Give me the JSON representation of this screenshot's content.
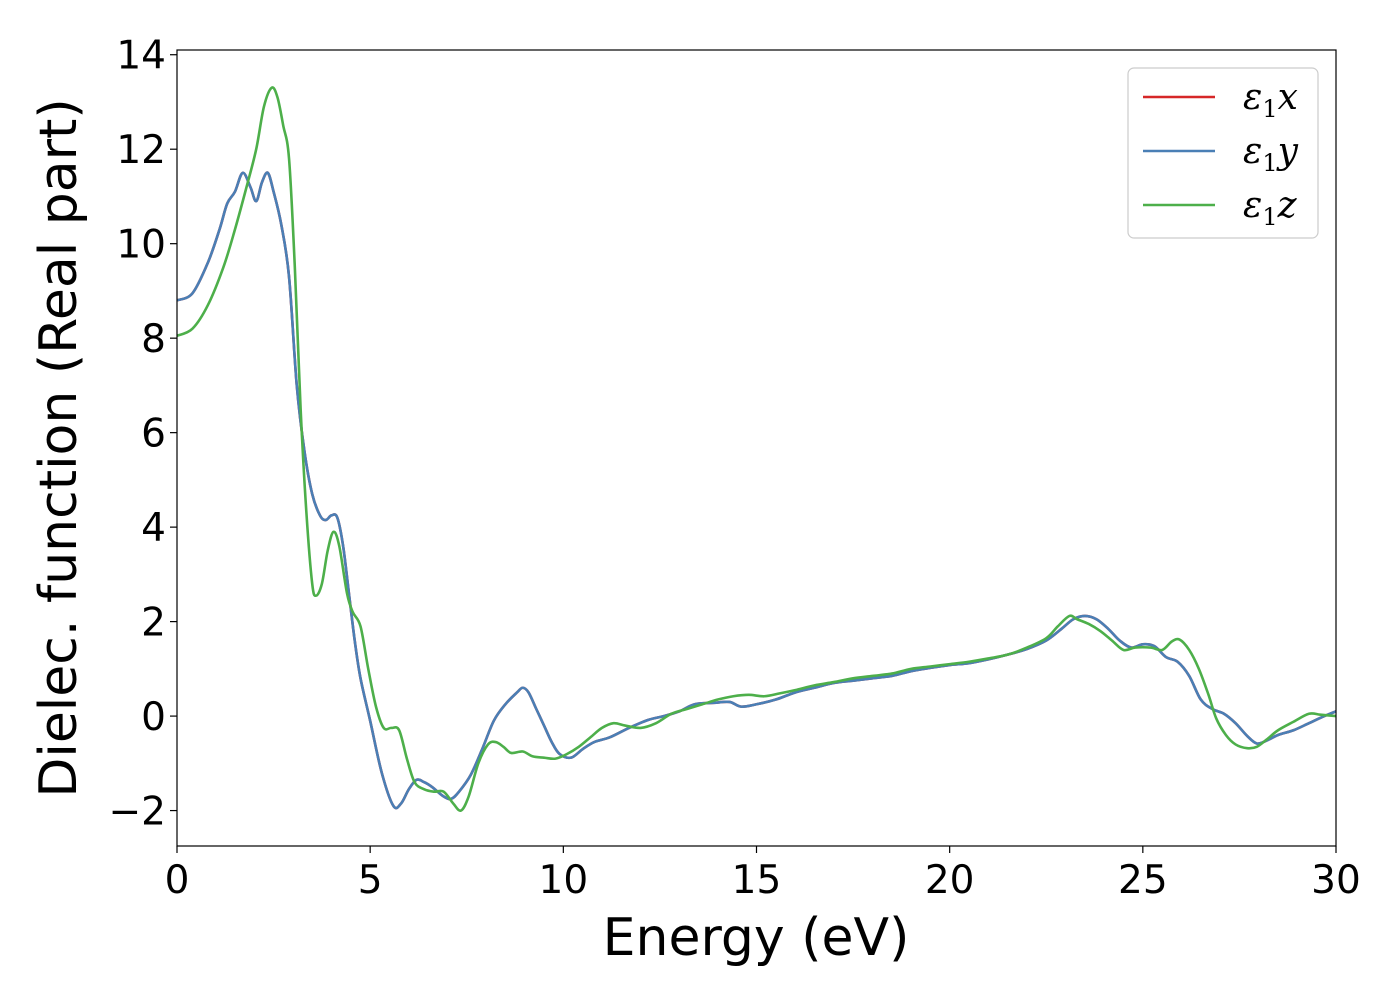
{
  "chart_data": {
    "type": "line",
    "xlabel": "Energy (eV)",
    "ylabel": "Dielec. function (Real part)",
    "xlim": [
      0,
      30
    ],
    "ylim": [
      -2.75,
      14.1
    ],
    "xticks": [
      0,
      5,
      10,
      15,
      20,
      25,
      30
    ],
    "xtick_labels": [
      "0",
      "5",
      "10",
      "15",
      "20",
      "25",
      "30"
    ],
    "yticks": [
      -2,
      0,
      2,
      4,
      6,
      8,
      10,
      12,
      14
    ],
    "ytick_labels": [
      "−2",
      "0",
      "2",
      "4",
      "6",
      "8",
      "10",
      "12",
      "14"
    ],
    "grid": false,
    "legend_position": "top-right",
    "series": [
      {
        "name": "ε1x",
        "legend_main": "ε",
        "legend_sub": "1",
        "legend_var": "x",
        "color": "#d62728",
        "points": [
          [
            0,
            8.8
          ],
          [
            0.4,
            8.95
          ],
          [
            0.8,
            9.6
          ],
          [
            1.1,
            10.3
          ],
          [
            1.3,
            10.85
          ],
          [
            1.5,
            11.1
          ],
          [
            1.7,
            11.5
          ],
          [
            1.9,
            11.2
          ],
          [
            2.05,
            10.9
          ],
          [
            2.2,
            11.3
          ],
          [
            2.35,
            11.5
          ],
          [
            2.5,
            11.1
          ],
          [
            2.7,
            10.4
          ],
          [
            2.9,
            9.3
          ],
          [
            3.1,
            7.0
          ],
          [
            3.3,
            5.6
          ],
          [
            3.5,
            4.7
          ],
          [
            3.7,
            4.25
          ],
          [
            3.85,
            4.15
          ],
          [
            4.0,
            4.25
          ],
          [
            4.15,
            4.2
          ],
          [
            4.3,
            3.6
          ],
          [
            4.45,
            2.6
          ],
          [
            4.6,
            1.6
          ],
          [
            4.75,
            0.8
          ],
          [
            5.0,
            -0.1
          ],
          [
            5.3,
            -1.2
          ],
          [
            5.6,
            -1.9
          ],
          [
            5.8,
            -1.85
          ],
          [
            6.0,
            -1.55
          ],
          [
            6.2,
            -1.35
          ],
          [
            6.4,
            -1.4
          ],
          [
            6.6,
            -1.5
          ],
          [
            6.9,
            -1.7
          ],
          [
            7.1,
            -1.75
          ],
          [
            7.3,
            -1.6
          ],
          [
            7.6,
            -1.25
          ],
          [
            7.9,
            -0.7
          ],
          [
            8.2,
            -0.1
          ],
          [
            8.5,
            0.25
          ],
          [
            8.8,
            0.5
          ],
          [
            8.95,
            0.6
          ],
          [
            9.1,
            0.5
          ],
          [
            9.3,
            0.15
          ],
          [
            9.5,
            -0.2
          ],
          [
            9.7,
            -0.55
          ],
          [
            9.9,
            -0.8
          ],
          [
            10.2,
            -0.88
          ],
          [
            10.5,
            -0.7
          ],
          [
            10.8,
            -0.55
          ],
          [
            11.2,
            -0.45
          ],
          [
            11.7,
            -0.25
          ],
          [
            12.2,
            -0.08
          ],
          [
            12.6,
            0.0
          ],
          [
            13.0,
            0.1
          ],
          [
            13.4,
            0.25
          ],
          [
            13.9,
            0.28
          ],
          [
            14.3,
            0.3
          ],
          [
            14.6,
            0.2
          ],
          [
            15.0,
            0.25
          ],
          [
            15.5,
            0.35
          ],
          [
            16.0,
            0.5
          ],
          [
            16.5,
            0.6
          ],
          [
            17.0,
            0.7
          ],
          [
            17.5,
            0.75
          ],
          [
            18.0,
            0.8
          ],
          [
            18.5,
            0.85
          ],
          [
            19.0,
            0.95
          ],
          [
            19.5,
            1.02
          ],
          [
            20.0,
            1.08
          ],
          [
            20.5,
            1.12
          ],
          [
            21.0,
            1.2
          ],
          [
            21.5,
            1.3
          ],
          [
            22.0,
            1.42
          ],
          [
            22.5,
            1.6
          ],
          [
            22.9,
            1.85
          ],
          [
            23.2,
            2.05
          ],
          [
            23.5,
            2.12
          ],
          [
            23.8,
            2.05
          ],
          [
            24.1,
            1.85
          ],
          [
            24.4,
            1.6
          ],
          [
            24.7,
            1.45
          ],
          [
            25.0,
            1.52
          ],
          [
            25.3,
            1.48
          ],
          [
            25.6,
            1.25
          ],
          [
            25.9,
            1.15
          ],
          [
            26.2,
            0.85
          ],
          [
            26.5,
            0.35
          ],
          [
            26.8,
            0.15
          ],
          [
            27.1,
            0.05
          ],
          [
            27.4,
            -0.15
          ],
          [
            27.7,
            -0.42
          ],
          [
            27.95,
            -0.58
          ],
          [
            28.2,
            -0.52
          ],
          [
            28.5,
            -0.4
          ],
          [
            28.9,
            -0.3
          ],
          [
            29.3,
            -0.15
          ],
          [
            29.7,
            0.0
          ],
          [
            30.0,
            0.1
          ]
        ]
      },
      {
        "name": "ε1y",
        "legend_main": "ε",
        "legend_sub": "1",
        "legend_var": "y",
        "color": "#4a7fb5",
        "points": [
          [
            0,
            8.8
          ],
          [
            0.4,
            8.95
          ],
          [
            0.8,
            9.6
          ],
          [
            1.1,
            10.3
          ],
          [
            1.3,
            10.85
          ],
          [
            1.5,
            11.1
          ],
          [
            1.7,
            11.5
          ],
          [
            1.9,
            11.2
          ],
          [
            2.05,
            10.9
          ],
          [
            2.2,
            11.3
          ],
          [
            2.35,
            11.5
          ],
          [
            2.5,
            11.1
          ],
          [
            2.7,
            10.4
          ],
          [
            2.9,
            9.3
          ],
          [
            3.1,
            7.0
          ],
          [
            3.3,
            5.6
          ],
          [
            3.5,
            4.7
          ],
          [
            3.7,
            4.25
          ],
          [
            3.85,
            4.15
          ],
          [
            4.0,
            4.25
          ],
          [
            4.15,
            4.2
          ],
          [
            4.3,
            3.6
          ],
          [
            4.45,
            2.6
          ],
          [
            4.6,
            1.6
          ],
          [
            4.75,
            0.8
          ],
          [
            5.0,
            -0.1
          ],
          [
            5.3,
            -1.2
          ],
          [
            5.6,
            -1.9
          ],
          [
            5.8,
            -1.85
          ],
          [
            6.0,
            -1.55
          ],
          [
            6.2,
            -1.35
          ],
          [
            6.4,
            -1.4
          ],
          [
            6.6,
            -1.5
          ],
          [
            6.9,
            -1.7
          ],
          [
            7.1,
            -1.75
          ],
          [
            7.3,
            -1.6
          ],
          [
            7.6,
            -1.25
          ],
          [
            7.9,
            -0.7
          ],
          [
            8.2,
            -0.1
          ],
          [
            8.5,
            0.25
          ],
          [
            8.8,
            0.5
          ],
          [
            8.95,
            0.6
          ],
          [
            9.1,
            0.5
          ],
          [
            9.3,
            0.15
          ],
          [
            9.5,
            -0.2
          ],
          [
            9.7,
            -0.55
          ],
          [
            9.9,
            -0.8
          ],
          [
            10.2,
            -0.88
          ],
          [
            10.5,
            -0.7
          ],
          [
            10.8,
            -0.55
          ],
          [
            11.2,
            -0.45
          ],
          [
            11.7,
            -0.25
          ],
          [
            12.2,
            -0.08
          ],
          [
            12.6,
            0.0
          ],
          [
            13.0,
            0.1
          ],
          [
            13.4,
            0.25
          ],
          [
            13.9,
            0.28
          ],
          [
            14.3,
            0.3
          ],
          [
            14.6,
            0.2
          ],
          [
            15.0,
            0.25
          ],
          [
            15.5,
            0.35
          ],
          [
            16.0,
            0.5
          ],
          [
            16.5,
            0.6
          ],
          [
            17.0,
            0.7
          ],
          [
            17.5,
            0.75
          ],
          [
            18.0,
            0.8
          ],
          [
            18.5,
            0.85
          ],
          [
            19.0,
            0.95
          ],
          [
            19.5,
            1.02
          ],
          [
            20.0,
            1.08
          ],
          [
            20.5,
            1.12
          ],
          [
            21.0,
            1.2
          ],
          [
            21.5,
            1.3
          ],
          [
            22.0,
            1.42
          ],
          [
            22.5,
            1.6
          ],
          [
            22.9,
            1.85
          ],
          [
            23.2,
            2.05
          ],
          [
            23.5,
            2.12
          ],
          [
            23.8,
            2.05
          ],
          [
            24.1,
            1.85
          ],
          [
            24.4,
            1.6
          ],
          [
            24.7,
            1.45
          ],
          [
            25.0,
            1.52
          ],
          [
            25.3,
            1.48
          ],
          [
            25.6,
            1.25
          ],
          [
            25.9,
            1.15
          ],
          [
            26.2,
            0.85
          ],
          [
            26.5,
            0.35
          ],
          [
            26.8,
            0.15
          ],
          [
            27.1,
            0.05
          ],
          [
            27.4,
            -0.15
          ],
          [
            27.7,
            -0.42
          ],
          [
            27.95,
            -0.58
          ],
          [
            28.2,
            -0.52
          ],
          [
            28.5,
            -0.4
          ],
          [
            28.9,
            -0.3
          ],
          [
            29.3,
            -0.15
          ],
          [
            29.7,
            0.0
          ],
          [
            30.0,
            0.1
          ]
        ]
      },
      {
        "name": "ε1z",
        "legend_main": "ε",
        "legend_sub": "1",
        "legend_var": "z",
        "color": "#4daf4a",
        "points": [
          [
            0,
            8.05
          ],
          [
            0.4,
            8.2
          ],
          [
            0.8,
            8.7
          ],
          [
            1.2,
            9.5
          ],
          [
            1.5,
            10.3
          ],
          [
            1.8,
            11.2
          ],
          [
            2.05,
            12.0
          ],
          [
            2.25,
            12.9
          ],
          [
            2.45,
            13.3
          ],
          [
            2.6,
            13.1
          ],
          [
            2.75,
            12.5
          ],
          [
            2.9,
            11.8
          ],
          [
            3.05,
            9.5
          ],
          [
            3.2,
            6.5
          ],
          [
            3.35,
            4.3
          ],
          [
            3.5,
            2.8
          ],
          [
            3.6,
            2.55
          ],
          [
            3.75,
            2.8
          ],
          [
            3.9,
            3.5
          ],
          [
            4.05,
            3.9
          ],
          [
            4.2,
            3.6
          ],
          [
            4.4,
            2.6
          ],
          [
            4.55,
            2.2
          ],
          [
            4.75,
            1.9
          ],
          [
            4.95,
            1.0
          ],
          [
            5.15,
            0.2
          ],
          [
            5.35,
            -0.25
          ],
          [
            5.55,
            -0.25
          ],
          [
            5.75,
            -0.3
          ],
          [
            5.95,
            -0.9
          ],
          [
            6.15,
            -1.4
          ],
          [
            6.4,
            -1.55
          ],
          [
            6.65,
            -1.6
          ],
          [
            6.9,
            -1.6
          ],
          [
            7.15,
            -1.85
          ],
          [
            7.35,
            -2.0
          ],
          [
            7.55,
            -1.7
          ],
          [
            7.8,
            -1.0
          ],
          [
            8.05,
            -0.6
          ],
          [
            8.25,
            -0.55
          ],
          [
            8.45,
            -0.65
          ],
          [
            8.65,
            -0.78
          ],
          [
            8.95,
            -0.75
          ],
          [
            9.2,
            -0.85
          ],
          [
            9.5,
            -0.88
          ],
          [
            9.8,
            -0.9
          ],
          [
            10.1,
            -0.8
          ],
          [
            10.4,
            -0.65
          ],
          [
            10.7,
            -0.45
          ],
          [
            11.0,
            -0.25
          ],
          [
            11.3,
            -0.15
          ],
          [
            11.6,
            -0.2
          ],
          [
            12.0,
            -0.25
          ],
          [
            12.4,
            -0.15
          ],
          [
            12.8,
            0.05
          ],
          [
            13.2,
            0.15
          ],
          [
            13.6,
            0.25
          ],
          [
            14.0,
            0.35
          ],
          [
            14.4,
            0.42
          ],
          [
            14.8,
            0.45
          ],
          [
            15.2,
            0.42
          ],
          [
            15.6,
            0.48
          ],
          [
            16.0,
            0.55
          ],
          [
            16.5,
            0.65
          ],
          [
            17.0,
            0.72
          ],
          [
            17.5,
            0.8
          ],
          [
            18.0,
            0.85
          ],
          [
            18.5,
            0.9
          ],
          [
            19.0,
            1.0
          ],
          [
            19.5,
            1.05
          ],
          [
            20.0,
            1.1
          ],
          [
            20.5,
            1.15
          ],
          [
            21.0,
            1.22
          ],
          [
            21.5,
            1.3
          ],
          [
            22.0,
            1.45
          ],
          [
            22.5,
            1.65
          ],
          [
            22.8,
            1.9
          ],
          [
            23.1,
            2.12
          ],
          [
            23.3,
            2.05
          ],
          [
            23.6,
            1.95
          ],
          [
            23.9,
            1.8
          ],
          [
            24.2,
            1.6
          ],
          [
            24.5,
            1.4
          ],
          [
            24.8,
            1.45
          ],
          [
            25.2,
            1.45
          ],
          [
            25.5,
            1.4
          ],
          [
            25.75,
            1.58
          ],
          [
            25.95,
            1.62
          ],
          [
            26.2,
            1.4
          ],
          [
            26.45,
            1.0
          ],
          [
            26.7,
            0.45
          ],
          [
            26.9,
            -0.05
          ],
          [
            27.15,
            -0.4
          ],
          [
            27.4,
            -0.6
          ],
          [
            27.7,
            -0.68
          ],
          [
            27.95,
            -0.65
          ],
          [
            28.2,
            -0.5
          ],
          [
            28.5,
            -0.3
          ],
          [
            28.9,
            -0.12
          ],
          [
            29.3,
            0.05
          ],
          [
            29.6,
            0.03
          ],
          [
            30.0,
            0.0
          ]
        ]
      }
    ]
  }
}
